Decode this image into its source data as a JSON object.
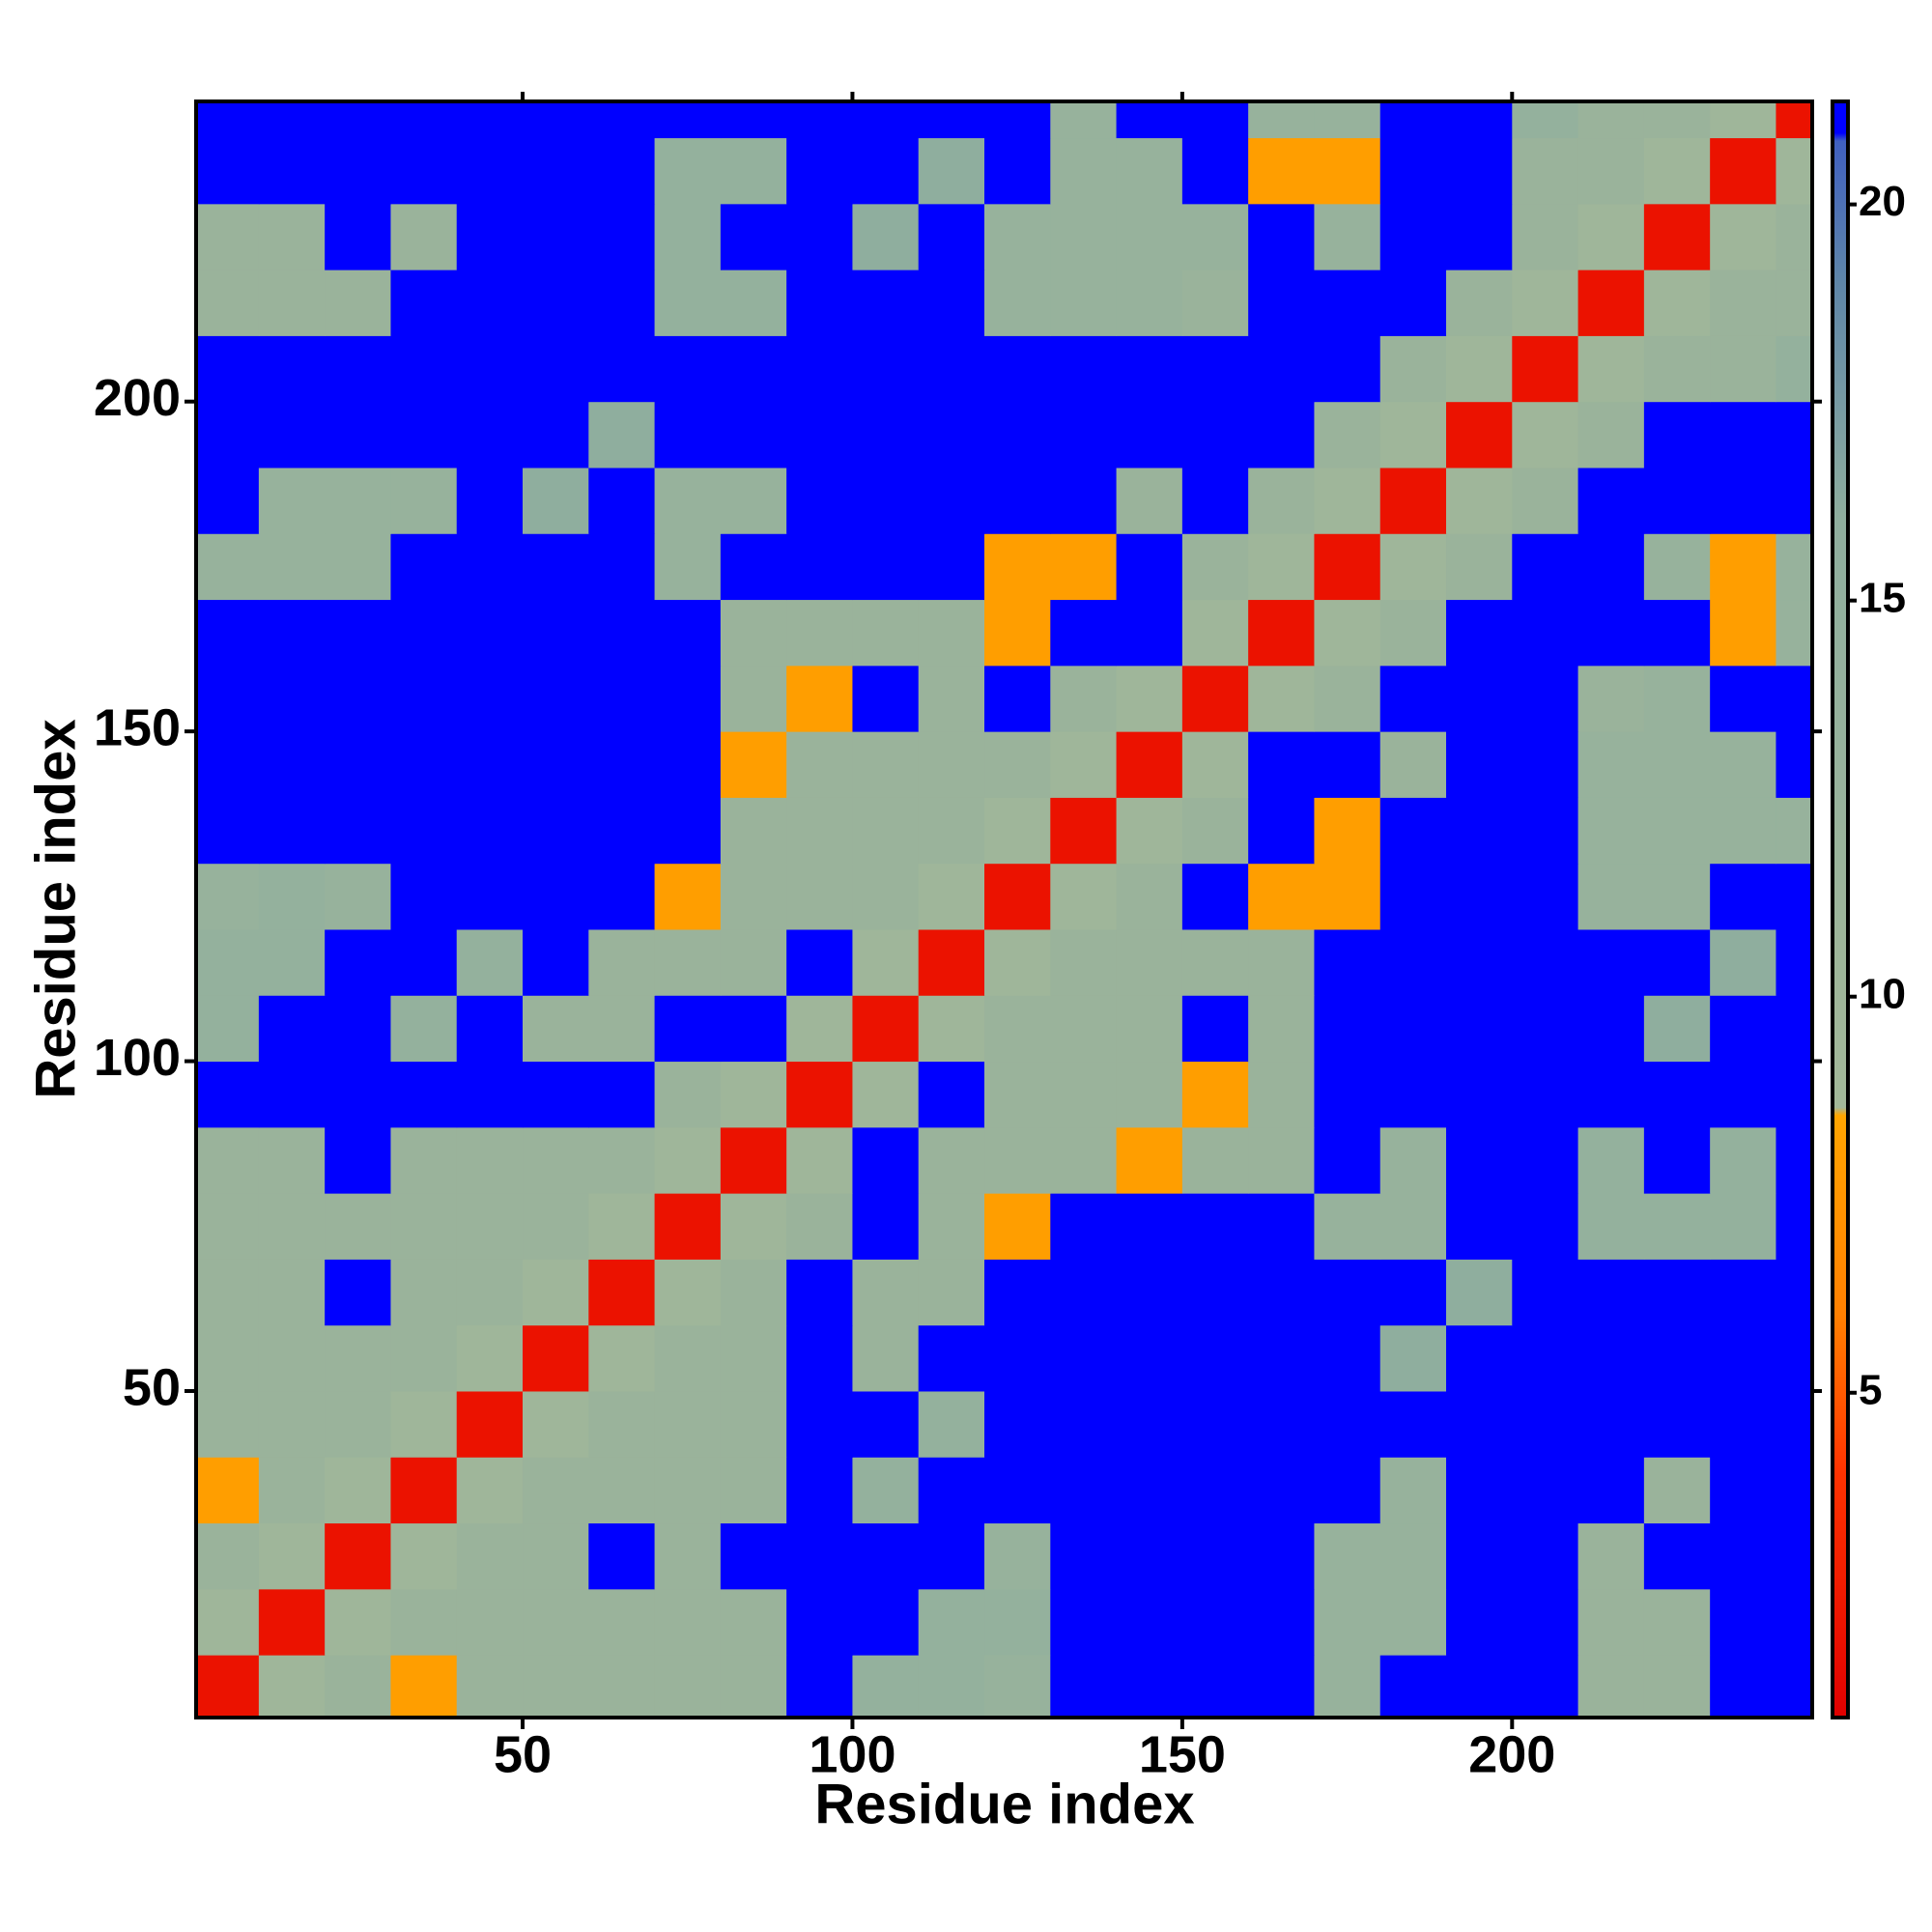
{
  "chart_data": {
    "type": "heatmap",
    "xlabel": "Residue index",
    "ylabel": "Residue index",
    "x": [
      5,
      15,
      25,
      35,
      45,
      55,
      65,
      75,
      85,
      95,
      105,
      115,
      125,
      135,
      145,
      155,
      165,
      175,
      185,
      195,
      205,
      215,
      225,
      235,
      245
    ],
    "y": [
      5,
      15,
      25,
      35,
      45,
      55,
      65,
      75,
      85,
      95,
      105,
      115,
      125,
      135,
      145,
      155,
      165,
      175,
      185,
      195,
      205,
      215,
      225,
      235,
      245
    ],
    "cell_size": 10,
    "z": [
      [
        2,
        10,
        12,
        8,
        12,
        12,
        12,
        12,
        12,
        21,
        14,
        14,
        13,
        21,
        21,
        21,
        21,
        13,
        21,
        21,
        21,
        12,
        12,
        21,
        21
      ],
      [
        10,
        2,
        10,
        12,
        12,
        12,
        12,
        12,
        12,
        21,
        21,
        14,
        14,
        21,
        21,
        21,
        21,
        13,
        13,
        21,
        21,
        12,
        12,
        21,
        21
      ],
      [
        12,
        10,
        2,
        10,
        12,
        12,
        21,
        12,
        21,
        21,
        21,
        21,
        13,
        21,
        21,
        21,
        21,
        13,
        13,
        21,
        21,
        12,
        21,
        21,
        21
      ],
      [
        8,
        12,
        10,
        2,
        10,
        12,
        12,
        12,
        12,
        21,
        14,
        21,
        21,
        21,
        21,
        21,
        21,
        21,
        13,
        21,
        21,
        21,
        12,
        21,
        21
      ],
      [
        12,
        12,
        12,
        10,
        2,
        10,
        12,
        12,
        12,
        21,
        21,
        14,
        21,
        21,
        21,
        21,
        21,
        21,
        21,
        21,
        21,
        21,
        21,
        21,
        21
      ],
      [
        12,
        12,
        12,
        12,
        10,
        2,
        10,
        12,
        12,
        21,
        12,
        21,
        21,
        21,
        21,
        21,
        21,
        21,
        16,
        21,
        21,
        21,
        21,
        21,
        21
      ],
      [
        12,
        12,
        21,
        12,
        12,
        10,
        2,
        10,
        12,
        21,
        12,
        12,
        21,
        21,
        21,
        21,
        21,
        21,
        21,
        16,
        21,
        21,
        21,
        21,
        21
      ],
      [
        12,
        12,
        12,
        12,
        12,
        12,
        10,
        2,
        10,
        12,
        21,
        12,
        8,
        21,
        21,
        21,
        21,
        13,
        13,
        21,
        21,
        14,
        14,
        14,
        21
      ],
      [
        12,
        12,
        21,
        12,
        12,
        12,
        12,
        10,
        2,
        10,
        21,
        12,
        12,
        12,
        8,
        12,
        12,
        21,
        13,
        21,
        21,
        14,
        21,
        14,
        21
      ],
      [
        21,
        21,
        21,
        21,
        21,
        21,
        21,
        12,
        10,
        2,
        10,
        21,
        12,
        12,
        12,
        8,
        12,
        21,
        21,
        21,
        21,
        21,
        21,
        21,
        21
      ],
      [
        14,
        21,
        21,
        14,
        21,
        12,
        12,
        21,
        21,
        10,
        2,
        10,
        12,
        12,
        12,
        21,
        12,
        21,
        21,
        21,
        21,
        21,
        16,
        21,
        21
      ],
      [
        14,
        14,
        21,
        21,
        14,
        21,
        12,
        12,
        12,
        21,
        10,
        2,
        10,
        12,
        12,
        12,
        12,
        21,
        21,
        21,
        21,
        21,
        21,
        16,
        21
      ],
      [
        13,
        14,
        13,
        21,
        21,
        21,
        21,
        8,
        12,
        12,
        12,
        10,
        2,
        10,
        12,
        21,
        8,
        8,
        21,
        21,
        21,
        13,
        13,
        21,
        21
      ],
      [
        21,
        21,
        21,
        21,
        21,
        21,
        21,
        21,
        12,
        12,
        12,
        12,
        10,
        2,
        10,
        12,
        21,
        8,
        21,
        21,
        21,
        13,
        13,
        13,
        13
      ],
      [
        21,
        21,
        21,
        21,
        21,
        21,
        21,
        21,
        8,
        12,
        12,
        12,
        12,
        10,
        2,
        10,
        21,
        21,
        12,
        21,
        21,
        13,
        13,
        13,
        21
      ],
      [
        21,
        21,
        21,
        21,
        21,
        21,
        21,
        21,
        12,
        8,
        21,
        12,
        21,
        12,
        10,
        2,
        10,
        12,
        21,
        21,
        21,
        12,
        13,
        21,
        21
      ],
      [
        21,
        21,
        21,
        21,
        21,
        21,
        21,
        21,
        12,
        12,
        12,
        12,
        8,
        21,
        21,
        10,
        2,
        10,
        12,
        21,
        21,
        21,
        21,
        8,
        13
      ],
      [
        13,
        13,
        13,
        21,
        21,
        21,
        21,
        13,
        21,
        21,
        21,
        21,
        8,
        8,
        21,
        12,
        10,
        2,
        10,
        12,
        21,
        21,
        13,
        8,
        13
      ],
      [
        21,
        13,
        13,
        13,
        21,
        16,
        21,
        13,
        13,
        21,
        21,
        21,
        21,
        21,
        12,
        21,
        12,
        10,
        2,
        10,
        12,
        21,
        21,
        21,
        21
      ],
      [
        21,
        21,
        21,
        21,
        21,
        21,
        16,
        21,
        21,
        21,
        21,
        21,
        21,
        21,
        21,
        21,
        21,
        12,
        10,
        2,
        10,
        12,
        21,
        21,
        21
      ],
      [
        21,
        21,
        21,
        21,
        21,
        21,
        21,
        21,
        21,
        21,
        21,
        21,
        21,
        21,
        21,
        21,
        21,
        21,
        12,
        10,
        2,
        10,
        12,
        12,
        14
      ],
      [
        12,
        12,
        12,
        21,
        21,
        21,
        21,
        14,
        14,
        21,
        21,
        21,
        13,
        13,
        13,
        12,
        21,
        21,
        21,
        12,
        10,
        2,
        10,
        12,
        12
      ],
      [
        12,
        12,
        21,
        12,
        21,
        21,
        21,
        14,
        21,
        21,
        16,
        21,
        13,
        13,
        13,
        13,
        21,
        13,
        21,
        21,
        12,
        10,
        2,
        10,
        12
      ],
      [
        21,
        21,
        21,
        21,
        21,
        21,
        21,
        14,
        14,
        21,
        21,
        16,
        21,
        13,
        13,
        21,
        8,
        8,
        21,
        21,
        12,
        12,
        10,
        2,
        10
      ],
      [
        21,
        21,
        21,
        21,
        21,
        21,
        21,
        21,
        21,
        21,
        21,
        21,
        21,
        13,
        21,
        21,
        13,
        13,
        21,
        21,
        14,
        12,
        12,
        10,
        2
      ]
    ],
    "xlim": [
      0.5,
      245.5
    ],
    "ylim": [
      0.5,
      245.5
    ],
    "xticks": [
      50,
      100,
      150,
      200
    ],
    "yticks": [
      50,
      100,
      150,
      200
    ],
    "zlim": [
      0.9,
      21.3
    ],
    "zticks": [
      5,
      10,
      15,
      20
    ],
    "colorscale": [
      [
        0.9,
        "#e00000"
      ],
      [
        4,
        "#ff3300"
      ],
      [
        6,
        "#ff8000"
      ],
      [
        8.5,
        "#ffa500"
      ],
      [
        8.6,
        "#a3b899"
      ],
      [
        16,
        "#8fae9e"
      ],
      [
        19,
        "#5f86a8"
      ],
      [
        20.8,
        "#4060c0"
      ],
      [
        20.9,
        "#0000ff"
      ],
      [
        21.3,
        "#0000ff"
      ]
    ],
    "colorbar": true
  }
}
